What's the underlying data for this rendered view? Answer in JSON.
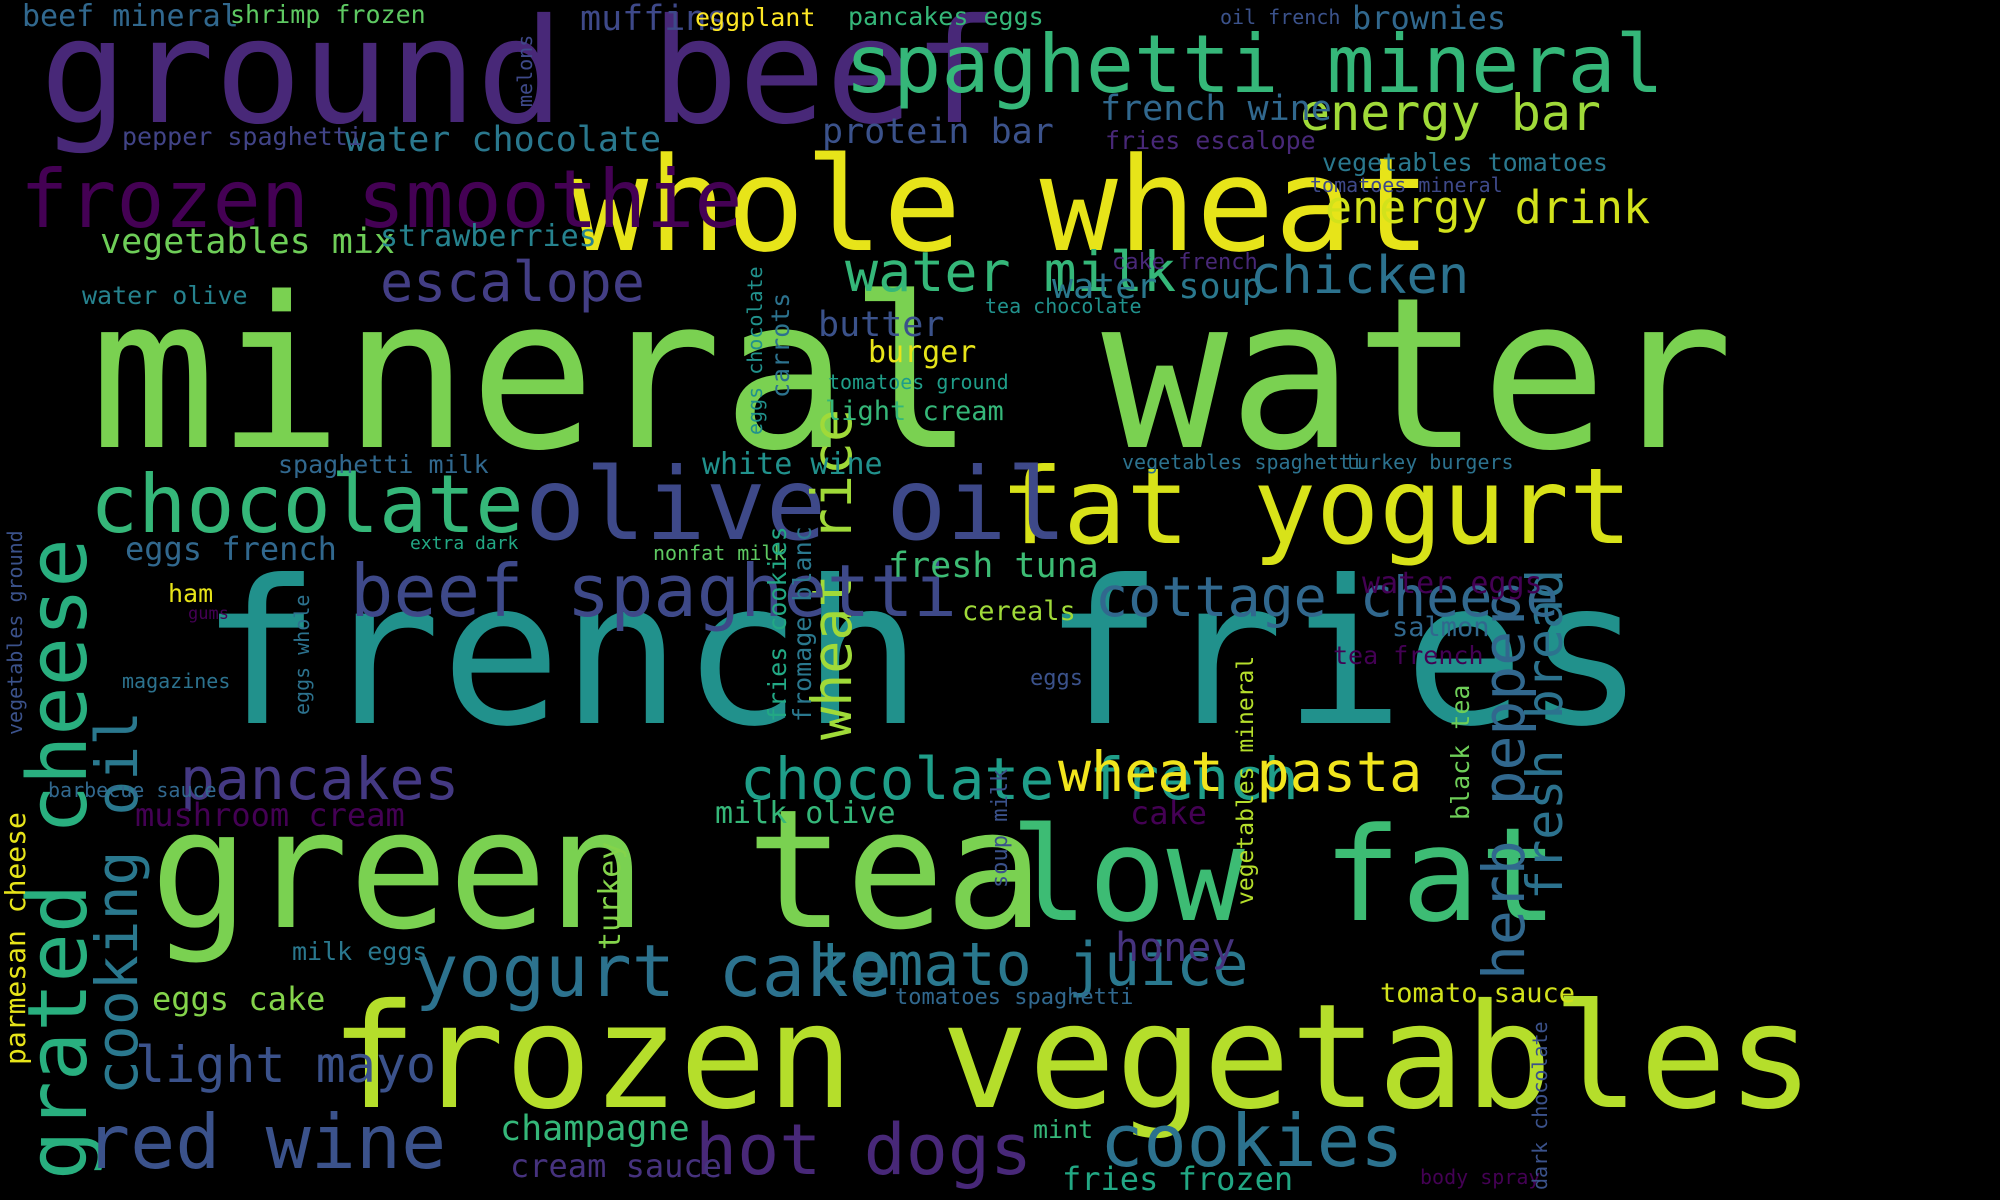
{
  "palette": {
    "background": "#000000",
    "yellow": "#e7e419",
    "lime": "#b5de2b",
    "green": "#6ece58",
    "mint": "#35b779",
    "teal": "#1f9e89",
    "cyan": "#26828e",
    "steel": "#31688e",
    "indigo": "#3e4989",
    "violet": "#482878",
    "purple": "#440154"
  },
  "words": [
    {
      "id": "mineral-water",
      "text": "mineral water",
      "color": "#7ad151"
    },
    {
      "id": "french-fries",
      "text": "french fries",
      "color": "#21918c"
    },
    {
      "id": "green-tea",
      "text": "green tea",
      "color": "#7ad151"
    },
    {
      "id": "frozen-vegetables",
      "text": "frozen vegetables",
      "color": "#b5de2b"
    },
    {
      "id": "ground-beef",
      "text": "ground beef",
      "color": "#482878"
    },
    {
      "id": "whole-wheat",
      "text": "whole wheat",
      "color": "#e7e419"
    },
    {
      "id": "low-fat",
      "text": "low fat",
      "color": "#3dbc74"
    },
    {
      "id": "spaghetti-mineral",
      "text": "spaghetti mineral",
      "color": "#35b779"
    },
    {
      "id": "fat-yogurt",
      "text": "fat yogurt",
      "color": "#d8e219"
    },
    {
      "id": "olive-oil",
      "text": "olive oil",
      "color": "#3e4989"
    },
    {
      "id": "frozen-smoothie",
      "text": "frozen smoothie",
      "color": "#440154"
    },
    {
      "id": "grated-cheese",
      "text": "grated cheese",
      "color": "#29af7f"
    },
    {
      "id": "cooking-oil",
      "text": "cooking oil",
      "color": "#2a788e"
    },
    {
      "id": "herb-pepper",
      "text": "herb pepper",
      "color": "#31688e"
    },
    {
      "id": "fresh-bread",
      "text": "fresh bread",
      "color": "#2c728e"
    },
    {
      "id": "wheat-rice",
      "text": "wheat rice",
      "color": "#a0da39"
    },
    {
      "id": "chocolate",
      "text": "chocolate",
      "color": "#35b779"
    },
    {
      "id": "cookies",
      "text": "cookies",
      "color": "#2c728e"
    },
    {
      "id": "yogurt-cake",
      "text": "yogurt cake",
      "color": "#2c728e"
    },
    {
      "id": "red-wine",
      "text": "red wine",
      "color": "#3b528b"
    },
    {
      "id": "beef-spaghetti",
      "text": "beef spaghetti",
      "color": "#3e4989"
    },
    {
      "id": "hot-dogs",
      "text": "hot dogs",
      "color": "#482878"
    },
    {
      "id": "tomato-juice",
      "text": "tomato juice",
      "color": "#2a788e"
    },
    {
      "id": "cottage-cheese",
      "text": "cottage cheese",
      "color": "#31688e"
    },
    {
      "id": "pancakes",
      "text": "pancakes",
      "color": "#443983"
    },
    {
      "id": "chocolate-french",
      "text": "chocolate french",
      "color": "#1f9e89"
    },
    {
      "id": "wheat-pasta",
      "text": "wheat pasta",
      "color": "#f1e51d"
    },
    {
      "id": "chicken",
      "text": "chicken",
      "color": "#2c728e"
    },
    {
      "id": "water-milk",
      "text": "water milk",
      "color": "#35b779"
    },
    {
      "id": "escalope",
      "text": "escalope",
      "color": "#433e85"
    },
    {
      "id": "light-mayo",
      "text": "light mayo",
      "color": "#3b528b"
    },
    {
      "id": "energy-bar",
      "text": "energy bar",
      "color": "#a0da39"
    },
    {
      "id": "energy-drink",
      "text": "energy drink",
      "color": "#d2e21b"
    },
    {
      "id": "honey",
      "text": "honey",
      "color": "#46337e"
    },
    {
      "id": "champagne",
      "text": "champagne",
      "color": "#35b779"
    },
    {
      "id": "cream-sauce",
      "text": "cream sauce",
      "color": "#46327e"
    },
    {
      "id": "water-chocolate",
      "text": "water chocolate",
      "color": "#2a788e"
    },
    {
      "id": "protein-bar",
      "text": "protein bar",
      "color": "#3b528b"
    },
    {
      "id": "vegetables-mix",
      "text": "vegetables mix",
      "color": "#6ece58"
    },
    {
      "id": "strawberries",
      "text": "strawberries",
      "color": "#26828e"
    },
    {
      "id": "french-wine",
      "text": "french wine",
      "color": "#31688e"
    },
    {
      "id": "muffins",
      "text": "muffins",
      "color": "#3e4989"
    },
    {
      "id": "eggplant",
      "text": "eggplant",
      "color": "#fde725"
    },
    {
      "id": "pancakes-eggs",
      "text": "pancakes eggs",
      "color": "#35b779"
    },
    {
      "id": "brownies",
      "text": "brownies",
      "color": "#31688e"
    },
    {
      "id": "beef-mineral",
      "text": "beef mineral",
      "color": "#31688e"
    },
    {
      "id": "shrimp-frozen",
      "text": "shrimp frozen",
      "color": "#5ec962"
    },
    {
      "id": "pepper-spaghetti",
      "text": "pepper spaghetti",
      "color": "#414487"
    },
    {
      "id": "melons",
      "text": "melons",
      "color": "#3e4989"
    },
    {
      "id": "oil-french",
      "text": "oil french",
      "color": "#3b528b"
    },
    {
      "id": "fries-escalope",
      "text": "fries escalope",
      "color": "#482878"
    },
    {
      "id": "vegetables-tomatoes",
      "text": "vegetables tomatoes",
      "color": "#2a788e"
    },
    {
      "id": "tomatoes-mineral",
      "text": "tomatoes mineral",
      "color": "#3e4989"
    },
    {
      "id": "water-olive",
      "text": "water olive",
      "color": "#26828e"
    },
    {
      "id": "cake-french",
      "text": "cake french",
      "color": "#482878"
    },
    {
      "id": "water-soup",
      "text": "water soup",
      "color": "#2a788e"
    },
    {
      "id": "tea-chocolate",
      "text": "tea chocolate",
      "color": "#21918c"
    },
    {
      "id": "butter",
      "text": "butter",
      "color": "#3b528b"
    },
    {
      "id": "burger",
      "text": "burger",
      "color": "#e7e419"
    },
    {
      "id": "tomatoes-ground",
      "text": "tomatoes ground",
      "color": "#1f9e89"
    },
    {
      "id": "light-cream",
      "text": "light cream",
      "color": "#35b779"
    },
    {
      "id": "eggs-chocolate",
      "text": "eggs chocolate",
      "color": "#21918c"
    },
    {
      "id": "carrots",
      "text": "carrots",
      "color": "#2c728e"
    },
    {
      "id": "spaghetti-milk",
      "text": "spaghetti milk",
      "color": "#31688e"
    },
    {
      "id": "white-wine",
      "text": "white wine",
      "color": "#21918c"
    },
    {
      "id": "vegetables-spaghetti",
      "text": "vegetables spaghetti",
      "color": "#2c728e"
    },
    {
      "id": "turkey-burgers",
      "text": "turkey burgers",
      "color": "#2c728e"
    },
    {
      "id": "eggs-french",
      "text": "eggs french",
      "color": "#31688e"
    },
    {
      "id": "extra-dark",
      "text": "extra dark",
      "color": "#22a884"
    },
    {
      "id": "nonfat-milk",
      "text": "nonfat milk",
      "color": "#5ec962"
    },
    {
      "id": "fresh-tuna",
      "text": "fresh tuna",
      "color": "#3dbc74"
    },
    {
      "id": "cereals",
      "text": "cereals",
      "color": "#a0da39"
    },
    {
      "id": "water-eggs",
      "text": "water eggs",
      "color": "#440154"
    },
    {
      "id": "salmon",
      "text": "salmon",
      "color": "#31688e"
    },
    {
      "id": "tea-french",
      "text": "tea french",
      "color": "#440154"
    },
    {
      "id": "ham",
      "text": "ham",
      "color": "#e7e419"
    },
    {
      "id": "gums",
      "text": "gums",
      "color": "#440154"
    },
    {
      "id": "magazines",
      "text": "magazines",
      "color": "#2c728e"
    },
    {
      "id": "vegetables-ground",
      "text": "vegetables ground",
      "color": "#3b528b"
    },
    {
      "id": "eggs-whole",
      "text": "eggs whole",
      "color": "#2c728e"
    },
    {
      "id": "fries-cookies",
      "text": "fries cookies",
      "color": "#22a884"
    },
    {
      "id": "fromage-blanc",
      "text": "fromage blanc",
      "color": "#2a788e"
    },
    {
      "id": "eggs",
      "text": "eggs",
      "color": "#3b528b"
    },
    {
      "id": "vegetables-mineral",
      "text": "vegetables mineral",
      "color": "#b5de2b"
    },
    {
      "id": "black-tea",
      "text": "black tea",
      "color": "#6ece58"
    },
    {
      "id": "barbecue-sauce",
      "text": "barbecue sauce",
      "color": "#31688e"
    },
    {
      "id": "mushroom-cream",
      "text": "mushroom cream",
      "color": "#440154"
    },
    {
      "id": "parmesan-cheese",
      "text": "parmesan cheese",
      "color": "#e7e419"
    },
    {
      "id": "cake",
      "text": "cake",
      "color": "#440154"
    },
    {
      "id": "milk-olive",
      "text": "milk olive",
      "color": "#35b779"
    },
    {
      "id": "soup-milk",
      "text": "soup milk",
      "color": "#3b528b"
    },
    {
      "id": "turkey",
      "text": "turkey",
      "color": "#84d44b"
    },
    {
      "id": "milk-eggs",
      "text": "milk eggs",
      "color": "#2a788e"
    },
    {
      "id": "eggs-cake",
      "text": "eggs cake",
      "color": "#84d44b"
    },
    {
      "id": "tomatoes-spaghetti",
      "text": "tomatoes spaghetti",
      "color": "#31688e"
    },
    {
      "id": "tomato-sauce",
      "text": "tomato sauce",
      "color": "#d2e21b"
    },
    {
      "id": "mint",
      "text": "mint",
      "color": "#35b779"
    },
    {
      "id": "fries-frozen",
      "text": "fries frozen",
      "color": "#22a884"
    },
    {
      "id": "body-spray",
      "text": "body spray",
      "color": "#440154"
    },
    {
      "id": "dark-chocolate",
      "text": "dark chocolate",
      "color": "#3b528b"
    }
  ]
}
